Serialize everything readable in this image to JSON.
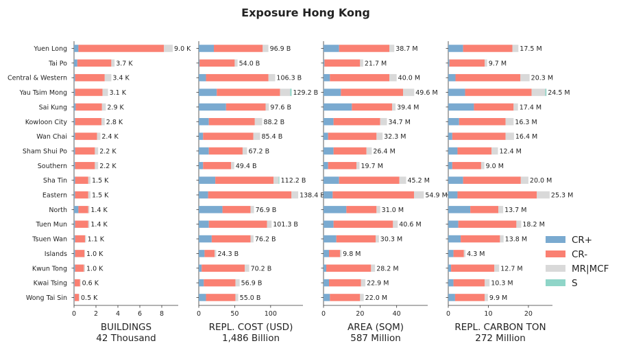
{
  "colors": {
    "CR+": "#7aaad0",
    "CR-": "#fa8072",
    "MR|MCF": "#d9d9d9",
    "S": "#8fd5c8"
  },
  "chart_data": {
    "type": "bar",
    "orientation": "horizontal",
    "stacked": true,
    "title": "Exposure Hong Kong",
    "categories": [
      "Yuen Long",
      "Tai Po",
      "Central & Western",
      "Yau Tsim Mong",
      "Sai Kung",
      "Kowloon City",
      "Wan Chai",
      "Sham Shui Po",
      "Southern",
      "Sha Tin",
      "Eastern",
      "North",
      "Tuen Mun",
      "Tsuen Wan",
      "Islands",
      "Kwun Tong",
      "Kwai Tsing",
      "Wong Tai Sin"
    ],
    "legend": {
      "position": "right",
      "entries": [
        "CR+",
        "CR-",
        "MR|MCF",
        "S"
      ]
    },
    "grid": false,
    "panels": [
      {
        "xlabel": "BUILDINGS",
        "total_label": "42 Thousand",
        "xlim": [
          0,
          9.5
        ],
        "xticks": [
          0,
          2,
          4,
          6,
          8
        ],
        "labels": [
          "9.0 K",
          "3.7 K",
          "3.4 K",
          "3.1 K",
          "2.9 K",
          "2.8 K",
          "2.4 K",
          "2.2 K",
          "2.2 K",
          "1.5 K",
          "1.5 K",
          "1.4 K",
          "1.4 K",
          "1.1 K",
          "1.0 K",
          "1.0 K",
          "0.6 K",
          "0.5 K"
        ],
        "series": [
          {
            "name": "CR+",
            "values": [
              0.4,
              0.3,
              0.1,
              0.1,
              0.15,
              0.1,
              0.1,
              0.1,
              0.1,
              0.1,
              0.1,
              0.4,
              0.1,
              0.1,
              0.1,
              0.1,
              0.05,
              0.05
            ]
          },
          {
            "name": "CR-",
            "values": [
              7.8,
              3.1,
              2.7,
              2.5,
              2.4,
              2.4,
              2.0,
              1.8,
              1.8,
              1.2,
              1.2,
              0.9,
              1.2,
              0.9,
              0.85,
              0.8,
              0.5,
              0.4
            ]
          },
          {
            "name": "MR|MCF",
            "values": [
              0.8,
              0.3,
              0.6,
              0.5,
              0.35,
              0.3,
              0.3,
              0.3,
              0.3,
              0.2,
              0.2,
              0.1,
              0.1,
              0.1,
              0.05,
              0.1,
              0.05,
              0.05
            ]
          },
          {
            "name": "S",
            "values": [
              0,
              0,
              0,
              0,
              0,
              0,
              0,
              0,
              0,
              0,
              0,
              0,
              0,
              0,
              0,
              0,
              0,
              0
            ]
          }
        ]
      },
      {
        "xlabel": "REPL. COST (USD)",
        "total_label": "1,486 Billion",
        "xlim": [
          0,
          145
        ],
        "xticks": [
          0,
          50,
          100
        ],
        "labels": [
          "96.9 B",
          "54.0 B",
          "106.3 B",
          "129.2 B",
          "97.6 B",
          "88.2 B",
          "85.4 B",
          "67.2 B",
          "49.4 B",
          "112.2 B",
          "138.4 B",
          "76.9 B",
          "101.3 B",
          "76.2 B",
          "24.3 B",
          "70.2 B",
          "56.9 B",
          "55.0 B"
        ],
        "series": [
          {
            "name": "CR+",
            "values": [
              21,
              1,
              10,
              25,
              38,
              14,
              6,
              14,
              6,
              23,
              13,
              33,
              14,
              18,
              8,
              4,
              7,
              10
            ]
          },
          {
            "name": "CR-",
            "values": [
              68,
              49,
              87,
              88,
              55,
              64,
              70,
              47,
              39,
              81,
              116,
              39,
              81,
              54,
              14,
              60,
              44,
              41
            ]
          },
          {
            "name": "MR|MCF",
            "values": [
              7.9,
              4.0,
              9.3,
              14.2,
              4.6,
              10.2,
              9.4,
              6.2,
              4.4,
              7.2,
              9.4,
              4.9,
              6.3,
              4.2,
              2.3,
              6.2,
              5.9,
              4.0
            ]
          },
          {
            "name": "S",
            "values": [
              0,
              0,
              0,
              2,
              0,
              0,
              0,
              0,
              0,
              1,
              0,
              0,
              0,
              0,
              0,
              0,
              0,
              0
            ]
          }
        ]
      },
      {
        "xlabel": "AREA (SQM)",
        "total_label": "587 Million",
        "xlim": [
          0,
          57
        ],
        "xticks": [
          0,
          20,
          40
        ],
        "labels": [
          "38.7 M",
          "21.7 M",
          "40.0 M",
          "49.6 M",
          "39.4 M",
          "34.7 M",
          "32.3 M",
          "26.4 M",
          "19.7 M",
          "45.2 M",
          "54.9 M",
          "31.0 M",
          "40.6 M",
          "30.3 M",
          "9.8 M",
          "28.2 M",
          "22.9 M",
          "22.0 M"
        ],
        "series": [
          {
            "name": "CR+",
            "values": [
              8.5,
              0.5,
              3.5,
              9.5,
              15.5,
              5.5,
              2.5,
              5.5,
              2.5,
              8.5,
              5.0,
              12.5,
              5.5,
              7.0,
              3.0,
              1.5,
              3.0,
              3.5
            ]
          },
          {
            "name": "CR-",
            "values": [
              27.5,
              19.5,
              32.5,
              34.0,
              22.0,
              25.5,
              26.5,
              18.0,
              15.5,
              33.0,
              44.5,
              16.5,
              32.5,
              21.5,
              6.0,
              24.5,
              17.5,
              16.5
            ]
          },
          {
            "name": "MR|MCF",
            "values": [
              2.7,
              1.7,
              4.0,
              6.1,
              1.9,
              3.7,
              3.3,
              2.9,
              1.7,
              3.7,
              5.4,
              2.0,
              2.6,
              1.8,
              0.8,
              2.2,
              2.4,
              2.0
            ]
          },
          {
            "name": "S",
            "values": [
              0,
              0,
              0,
              0,
              0,
              0,
              0,
              0,
              0,
              0,
              0,
              0,
              0,
              0,
              0,
              0,
              0,
              0
            ]
          }
        ]
      },
      {
        "xlabel": "REPL. CARBON TON",
        "total_label": "272 Million",
        "xlim": [
          0,
          26
        ],
        "xticks": [
          0,
          10,
          20
        ],
        "labels": [
          "17.5 M",
          "9.7 M",
          "20.3 M",
          "24.5 M",
          "17.4 M",
          "16.3 M",
          "16.4 M",
          "12.4 M",
          "9.0 M",
          "20.0 M",
          "25.3 M",
          "13.7 M",
          "18.2 M",
          "13.8 M",
          "4.3 M",
          "12.7 M",
          "10.3 M",
          "9.9 M"
        ],
        "series": [
          {
            "name": "CR+",
            "values": [
              3.7,
              0.3,
              1.8,
              4.2,
              6.4,
              2.7,
              1.0,
              2.3,
              1.0,
              3.7,
              2.3,
              5.5,
              2.5,
              3.1,
              1.3,
              0.7,
              1.3,
              1.7
            ]
          },
          {
            "name": "CR-",
            "values": [
              12.3,
              8.8,
              16.2,
              16.6,
              9.9,
              11.6,
              13.3,
              8.5,
              7.2,
              14.4,
              19.8,
              7.0,
              14.5,
              9.8,
              2.6,
              10.8,
              7.8,
              7.4
            ]
          },
          {
            "name": "MR|MCF",
            "values": [
              1.5,
              0.6,
              2.3,
              3.4,
              1.1,
              2.0,
              2.1,
              1.6,
              0.8,
              1.9,
              3.2,
              1.2,
              1.2,
              0.9,
              0.4,
              1.2,
              1.2,
              0.8
            ]
          },
          {
            "name": "S",
            "values": [
              0,
              0,
              0,
              0.3,
              0,
              0,
              0,
              0,
              0,
              0,
              0,
              0,
              0,
              0,
              0,
              0,
              0,
              0
            ]
          }
        ]
      }
    ]
  }
}
